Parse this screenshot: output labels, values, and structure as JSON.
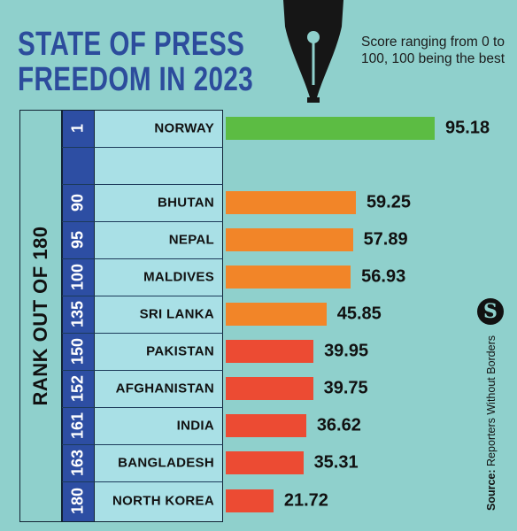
{
  "header": {
    "title_line1": "STATE OF PRESS",
    "title_line2": "FREEDOM IN 2023",
    "subtitle": "Score ranging from 0 to 100, 100 being the best"
  },
  "rank_axis_label": "RANK OUT OF 180",
  "source": {
    "prefix": "Source:",
    "name": "Reporters Without Borders"
  },
  "logo": {
    "letter": "S"
  },
  "colors": {
    "green": "#5cbc43",
    "orange": "#f28528",
    "red": "#ec4b33",
    "rank_column": "#2d4ea3",
    "background": "#8fd0cc"
  },
  "chart_data": {
    "type": "bar",
    "orientation": "horizontal",
    "title": "STATE OF PRESS FREEDOM IN 2023",
    "subtitle": "Score ranging from 0 to 100, 100 being the best",
    "ylabel": "RANK OUT OF 180",
    "xlim": [
      0,
      100
    ],
    "grid": false,
    "legend": "none",
    "categories": [
      "NORWAY",
      "BHUTAN",
      "NEPAL",
      "MALDIVES",
      "SRI LANKA",
      "PAKISTAN",
      "AFGHANISTAN",
      "INDIA",
      "BANGLADESH",
      "NORTH KOREA"
    ],
    "ranks": [
      "1",
      "90",
      "95",
      "100",
      "135",
      "150",
      "152",
      "161",
      "163",
      "180"
    ],
    "values": [
      95.18,
      59.25,
      57.89,
      56.93,
      45.85,
      39.95,
      39.75,
      36.62,
      35.31,
      21.72
    ],
    "value_labels": [
      "95.18",
      "59.25",
      "57.89",
      "56.93",
      "45.85",
      "39.95",
      "39.75",
      "36.62",
      "35.31",
      "21.72"
    ],
    "bar_colors": [
      "#5cbc43",
      "#f28528",
      "#f28528",
      "#f28528",
      "#f28528",
      "#ec4b33",
      "#ec4b33",
      "#ec4b33",
      "#ec4b33",
      "#ec4b33"
    ]
  }
}
